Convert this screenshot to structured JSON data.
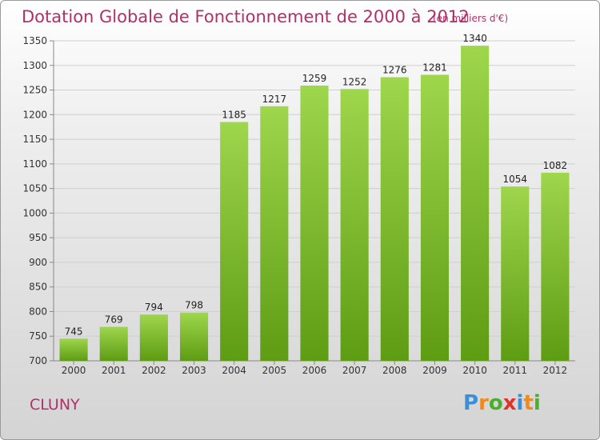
{
  "title": "Dotation Globale de Fonctionnement de 2000 à 2012",
  "unit_note": "(en milliers d'€)",
  "commune": "CLUNY",
  "logo": {
    "text": "Proxiti",
    "letter_colors": [
      "#3a8fd8",
      "#f08a1e",
      "#4cae2e",
      "#e0332a",
      "#3a8fd8",
      "#f08a1e",
      "#4cae2e"
    ]
  },
  "colors": {
    "bar_light": "#9ed64c",
    "bar_dark": "#5e9c14",
    "title": "#b0306a",
    "grid": "#cfcfcf"
  },
  "chart_data": {
    "type": "bar",
    "title": "Dotation Globale de Fonctionnement de 2000 à 2012",
    "xlabel": "",
    "ylabel": "",
    "categories": [
      "2000",
      "2001",
      "2002",
      "2003",
      "2004",
      "2005",
      "2006",
      "2007",
      "2008",
      "2009",
      "2010",
      "2011",
      "2012"
    ],
    "values": [
      745,
      769,
      794,
      798,
      1185,
      1217,
      1259,
      1252,
      1276,
      1281,
      1340,
      1054,
      1082
    ],
    "ylim": [
      700,
      1350
    ],
    "yticks": [
      700,
      750,
      800,
      850,
      900,
      950,
      1000,
      1050,
      1100,
      1150,
      1200,
      1250,
      1300,
      1350
    ],
    "grid": true,
    "legend": "none"
  }
}
